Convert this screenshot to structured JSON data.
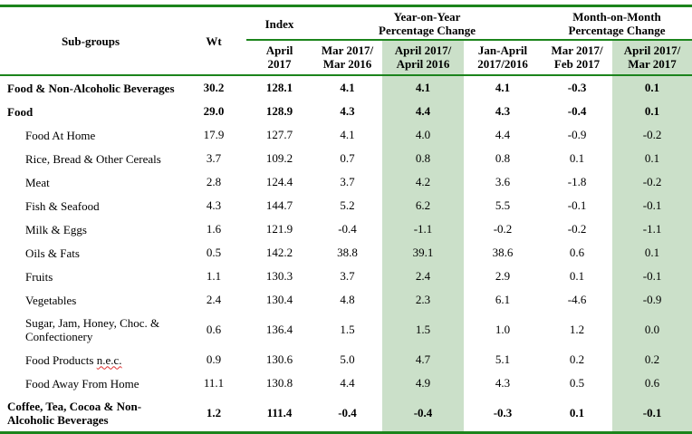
{
  "colors": {
    "line_green": "#1c841c",
    "shade_green": "#cbe0c9"
  },
  "table": {
    "header": {
      "subgroups": "Sub-groups",
      "wt": "Wt",
      "index_group": "Index",
      "yoy_group": "Year-on-Year\nPercentage Change",
      "mom_group": "Month-on-Month\nPercentage Change",
      "sub": [
        "April\n2017",
        "Mar 2017/\nMar 2016",
        "April 2017/\nApril 2016",
        "Jan-April\n2017/2016",
        "Mar 2017/\nFeb 2017",
        "April 2017/\nMar 2017"
      ]
    },
    "rows": [
      {
        "label": "Food & Non-Alcoholic Beverages",
        "bold": true,
        "values": [
          "30.2",
          "128.1",
          "4.1",
          "4.1",
          "4.1",
          "-0.3",
          "0.1"
        ]
      },
      {
        "label": "Food",
        "bold": true,
        "values": [
          "29.0",
          "128.9",
          "4.3",
          "4.4",
          "4.3",
          "-0.4",
          "0.1"
        ]
      },
      {
        "label": "Food At Home",
        "values": [
          "17.9",
          "127.7",
          "4.1",
          "4.0",
          "4.4",
          "-0.9",
          "-0.2"
        ]
      },
      {
        "label": "Rice, Bread & Other Cereals",
        "values": [
          "3.7",
          "109.2",
          "0.7",
          "0.8",
          "0.8",
          "0.1",
          "0.1"
        ]
      },
      {
        "label": "Meat",
        "values": [
          "2.8",
          "124.4",
          "3.7",
          "4.2",
          "3.6",
          "-1.8",
          "-0.2"
        ]
      },
      {
        "label": "Fish & Seafood",
        "values": [
          "4.3",
          "144.7",
          "5.2",
          "6.2",
          "5.5",
          "-0.1",
          "-0.1"
        ]
      },
      {
        "label": "Milk & Eggs",
        "values": [
          "1.6",
          "121.9",
          "-0.4",
          "-1.1",
          "-0.2",
          "-0.2",
          "-1.1"
        ]
      },
      {
        "label": "Oils & Fats",
        "values": [
          "0.5",
          "142.2",
          "38.8",
          "39.1",
          "38.6",
          "0.6",
          "0.1"
        ]
      },
      {
        "label": "Fruits",
        "values": [
          "1.1",
          "130.3",
          "3.7",
          "2.4",
          "2.9",
          "0.1",
          "-0.1"
        ]
      },
      {
        "label": "Vegetables",
        "values": [
          "2.4",
          "130.4",
          "4.8",
          "2.3",
          "6.1",
          "-4.6",
          "-0.9"
        ]
      },
      {
        "label": "Sugar, Jam, Honey, Choc. & Confectionery",
        "values": [
          "0.6",
          "136.4",
          "1.5",
          "1.5",
          "1.0",
          "1.2",
          "0.0"
        ]
      },
      {
        "label": "Food Products ",
        "label_wavy": "n.e.c.",
        "values": [
          "0.9",
          "130.6",
          "5.0",
          "4.7",
          "5.1",
          "0.2",
          "0.2"
        ]
      },
      {
        "label": "Food Away From Home",
        "values": [
          "11.1",
          "130.8",
          "4.4",
          "4.9",
          "4.3",
          "0.5",
          "0.6"
        ]
      },
      {
        "label": "Coffee, Tea, Cocoa & Non-Alcoholic Beverages",
        "bold": true,
        "values": [
          "1.2",
          "111.4",
          "-0.4",
          "-0.4",
          "-0.3",
          "0.1",
          "-0.1"
        ]
      }
    ]
  }
}
